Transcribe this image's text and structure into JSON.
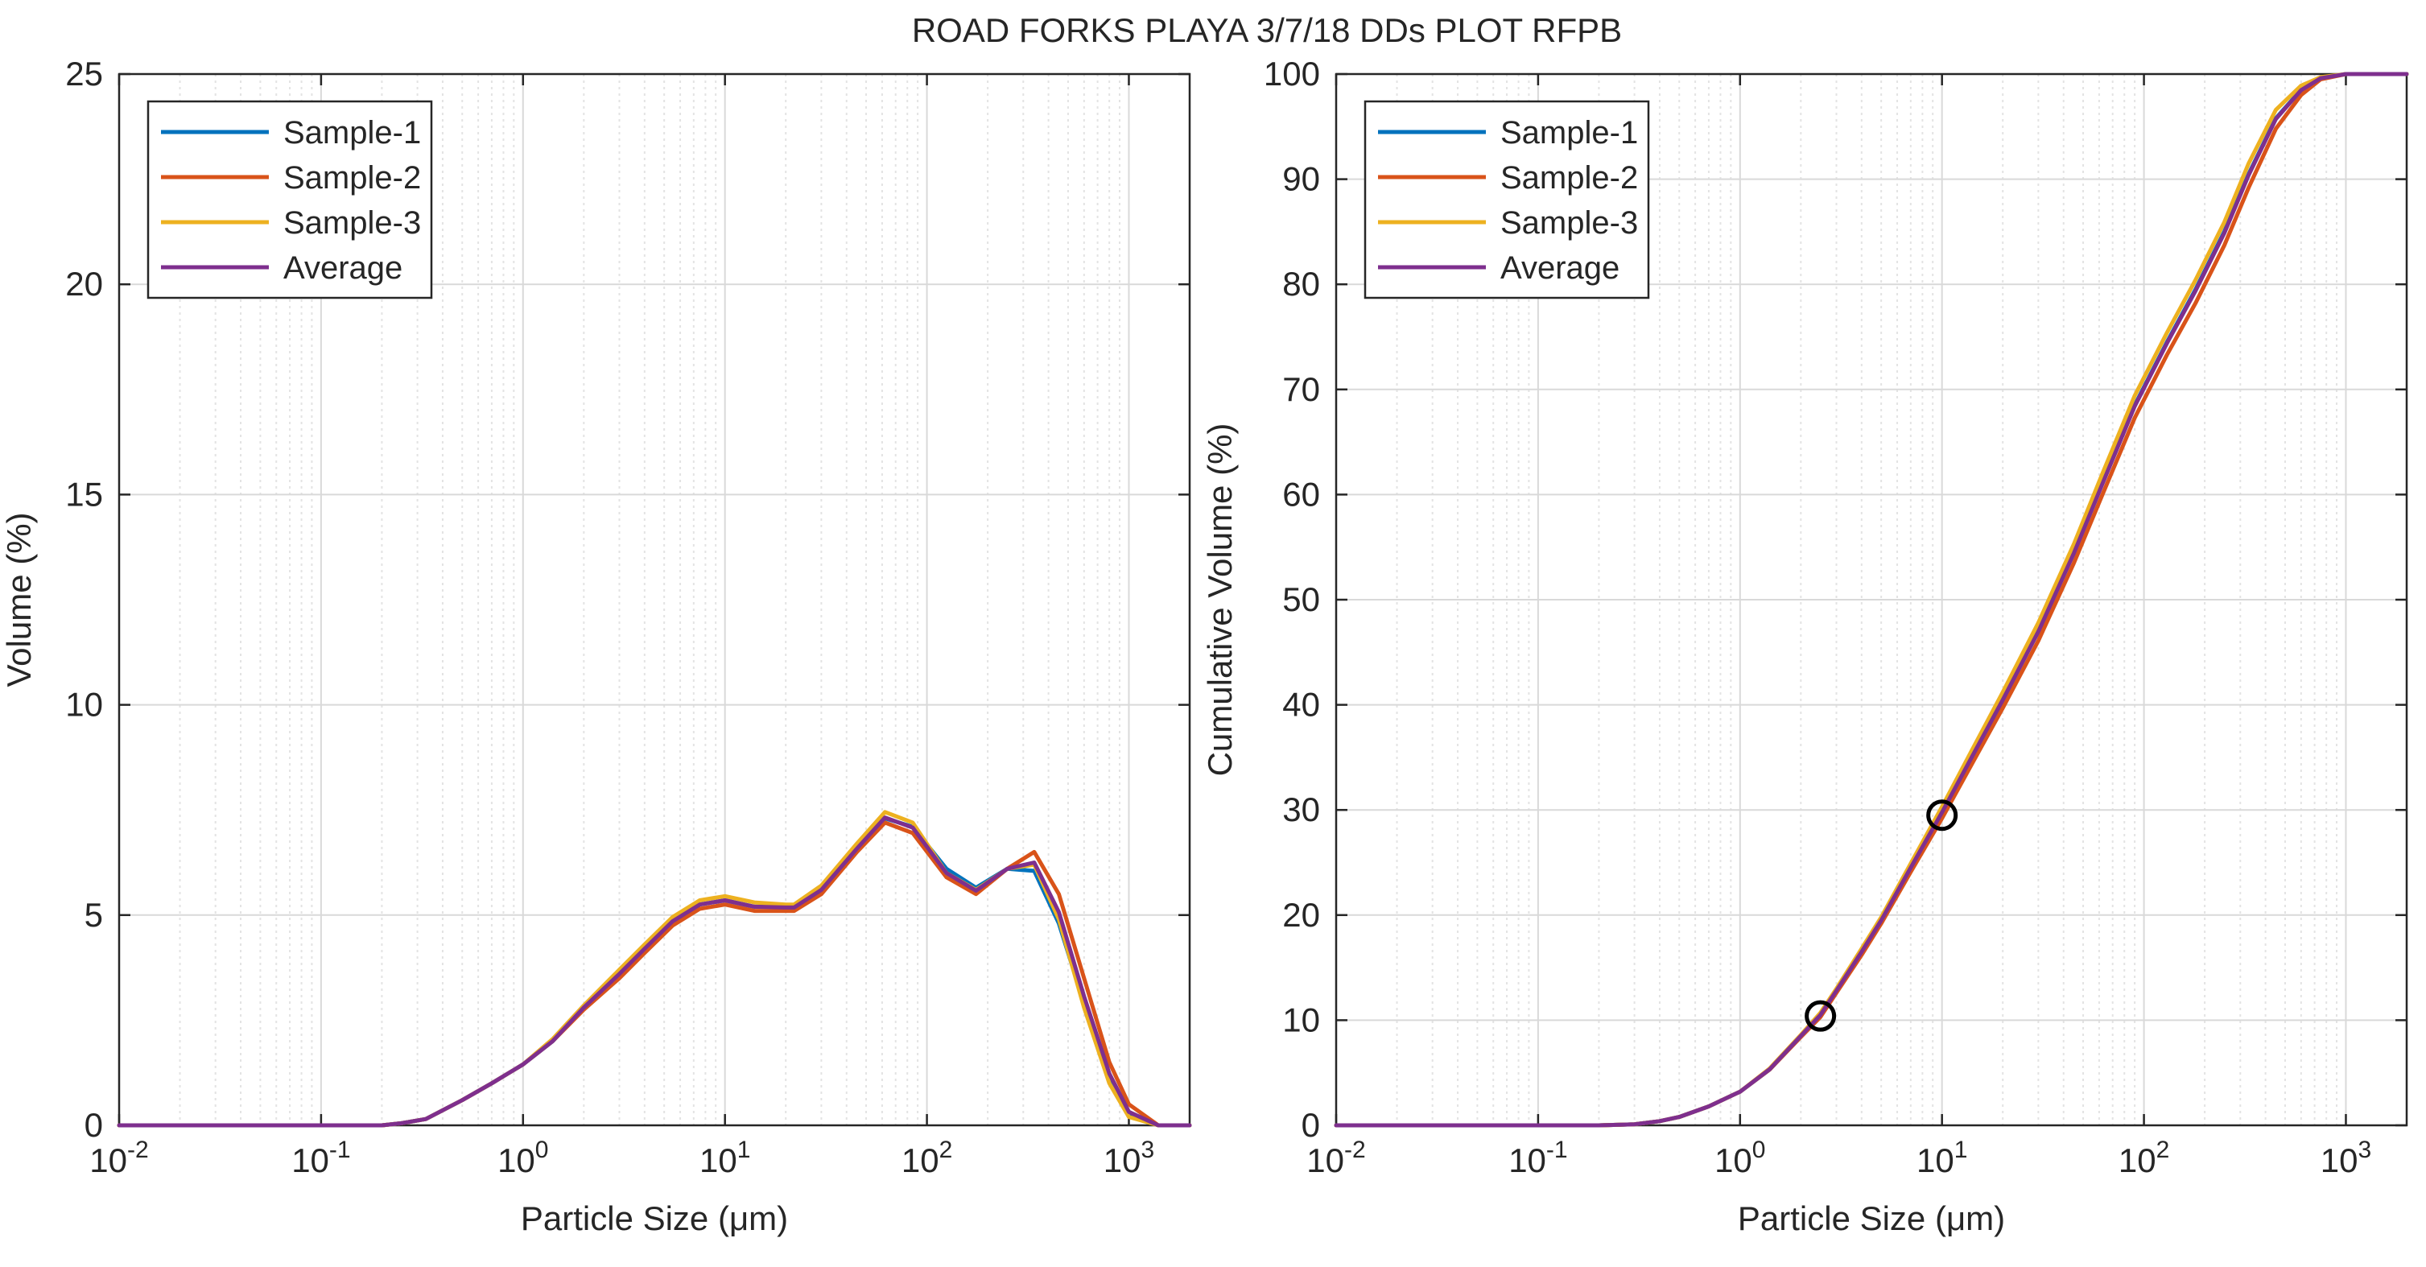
{
  "figure": {
    "title": "ROAD FORKS PLAYA 3/7/18 DDs PLOT RFPB"
  },
  "chart_data": [
    {
      "type": "line",
      "xscale": "log",
      "xlim": [
        0.01,
        2000
      ],
      "ylim": [
        0,
        25
      ],
      "xlabel": "Particle Size (μm)",
      "ylabel": "Volume (%)",
      "x_tick_labels": [
        "10",
        "10",
        "10",
        "10",
        "10",
        "10"
      ],
      "x_tick_exponents": [
        "-2",
        "-1",
        "0",
        "1",
        "2",
        "3"
      ],
      "x_ticks": [
        0.01,
        0.1,
        1,
        10,
        100,
        1000
      ],
      "y_ticks": [
        0,
        5,
        10,
        15,
        20,
        25
      ],
      "y_tick_labels": [
        "0",
        "5",
        "10",
        "15",
        "20",
        "25"
      ],
      "grid": true,
      "legend_position": "top-left",
      "x": [
        0.01,
        0.02,
        0.05,
        0.1,
        0.2,
        0.25,
        0.33,
        0.5,
        0.7,
        1,
        1.4,
        2,
        3,
        4,
        5.5,
        7.5,
        10,
        14,
        20,
        22,
        30,
        45,
        62,
        85,
        125,
        175,
        250,
        340,
        450,
        600,
        800,
        1000,
        1400,
        2000
      ],
      "series": [
        {
          "name": "Sample-1",
          "color": "#0072BD",
          "values": [
            0,
            0,
            0,
            0,
            0,
            0.05,
            0.15,
            0.6,
            1.0,
            1.45,
            2.0,
            2.8,
            3.6,
            4.2,
            4.85,
            5.25,
            5.35,
            5.2,
            5.2,
            5.2,
            5.6,
            6.55,
            7.3,
            7.1,
            6.1,
            5.65,
            6.1,
            6.05,
            4.8,
            2.9,
            1.2,
            0.25,
            0,
            0
          ]
        },
        {
          "name": "Sample-2",
          "color": "#D95319",
          "values": [
            0,
            0,
            0,
            0,
            0,
            0.05,
            0.15,
            0.6,
            1.0,
            1.45,
            2.0,
            2.75,
            3.5,
            4.1,
            4.75,
            5.15,
            5.25,
            5.1,
            5.1,
            5.1,
            5.5,
            6.5,
            7.2,
            6.95,
            5.9,
            5.5,
            6.1,
            6.5,
            5.5,
            3.5,
            1.5,
            0.5,
            0,
            0
          ]
        },
        {
          "name": "Sample-3",
          "color": "#EDB120",
          "values": [
            0,
            0,
            0,
            0,
            0,
            0.05,
            0.15,
            0.6,
            1.0,
            1.45,
            2.05,
            2.85,
            3.7,
            4.3,
            4.95,
            5.35,
            5.45,
            5.3,
            5.25,
            5.25,
            5.7,
            6.7,
            7.45,
            7.2,
            6.0,
            5.6,
            6.1,
            6.2,
            4.9,
            2.8,
            1.0,
            0.2,
            0,
            0
          ]
        },
        {
          "name": "Average",
          "color": "#7E2F8E",
          "values": [
            0,
            0,
            0,
            0,
            0,
            0.05,
            0.15,
            0.6,
            1.0,
            1.45,
            2.0,
            2.8,
            3.6,
            4.2,
            4.85,
            5.25,
            5.35,
            5.2,
            5.18,
            5.18,
            5.6,
            6.58,
            7.32,
            7.08,
            6.0,
            5.58,
            6.1,
            6.25,
            5.07,
            3.07,
            1.23,
            0.32,
            0,
            0
          ]
        }
      ]
    },
    {
      "type": "line",
      "xscale": "log",
      "xlim": [
        0.01,
        2000
      ],
      "ylim": [
        0,
        100
      ],
      "xlabel": "Particle Size (μm)",
      "ylabel": "Cumulative Volume (%)",
      "x_tick_labels": [
        "10",
        "10",
        "10",
        "10",
        "10",
        "10"
      ],
      "x_tick_exponents": [
        "-2",
        "-1",
        "0",
        "1",
        "2",
        "3"
      ],
      "x_ticks": [
        0.01,
        0.1,
        1,
        10,
        100,
        1000
      ],
      "y_ticks": [
        0,
        10,
        20,
        30,
        40,
        50,
        60,
        70,
        80,
        90,
        100
      ],
      "y_tick_labels": [
        "0",
        "10",
        "20",
        "30",
        "40",
        "50",
        "60",
        "70",
        "80",
        "90",
        "100"
      ],
      "grid": true,
      "legend_position": "top-left",
      "x": [
        0.01,
        0.1,
        0.2,
        0.3,
        0.4,
        0.5,
        0.7,
        1,
        1.4,
        2,
        2.5,
        3,
        4,
        5,
        7,
        10,
        14,
        20,
        30,
        45,
        62,
        90,
        130,
        180,
        250,
        330,
        450,
        600,
        750,
        1000,
        2000
      ],
      "series": [
        {
          "name": "Sample-1",
          "color": "#0072BD",
          "values": [
            0,
            0,
            0,
            0.1,
            0.4,
            0.8,
            1.8,
            3.2,
            5.3,
            8.5,
            10.5,
            12.8,
            16.5,
            19.5,
            24.5,
            29.8,
            35.0,
            40.5,
            47.0,
            54.5,
            61.0,
            68.5,
            74.5,
            79.5,
            85.0,
            90.5,
            95.8,
            98.5,
            99.6,
            100,
            100
          ]
        },
        {
          "name": "Sample-2",
          "color": "#D95319",
          "values": [
            0,
            0,
            0,
            0.1,
            0.4,
            0.8,
            1.8,
            3.2,
            5.3,
            8.4,
            10.3,
            12.6,
            16.2,
            19.2,
            24.1,
            29.2,
            34.3,
            39.7,
            46.1,
            53.5,
            59.9,
            67.3,
            73.3,
            78.2,
            83.7,
            89.2,
            94.8,
            98.0,
            99.5,
            100,
            100
          ]
        },
        {
          "name": "Sample-3",
          "color": "#EDB120",
          "values": [
            0,
            0,
            0,
            0.1,
            0.4,
            0.8,
            1.8,
            3.2,
            5.4,
            8.6,
            10.7,
            13.0,
            16.8,
            19.8,
            24.9,
            30.3,
            35.6,
            41.2,
            47.8,
            55.3,
            61.9,
            69.4,
            75.4,
            80.4,
            85.9,
            91.5,
            96.6,
            98.9,
            99.7,
            100,
            100
          ]
        },
        {
          "name": "Average",
          "color": "#7E2F8E",
          "values": [
            0,
            0,
            0,
            0.1,
            0.4,
            0.8,
            1.8,
            3.2,
            5.33,
            8.5,
            10.5,
            12.8,
            16.5,
            19.5,
            24.5,
            29.77,
            34.97,
            40.47,
            46.97,
            54.43,
            60.93,
            68.4,
            74.4,
            79.37,
            84.87,
            90.4,
            95.73,
            98.47,
            99.6,
            100,
            100
          ]
        }
      ],
      "markers": [
        {
          "x": 2.5,
          "y": 10.4
        },
        {
          "x": 10,
          "y": 29.5
        }
      ]
    }
  ]
}
